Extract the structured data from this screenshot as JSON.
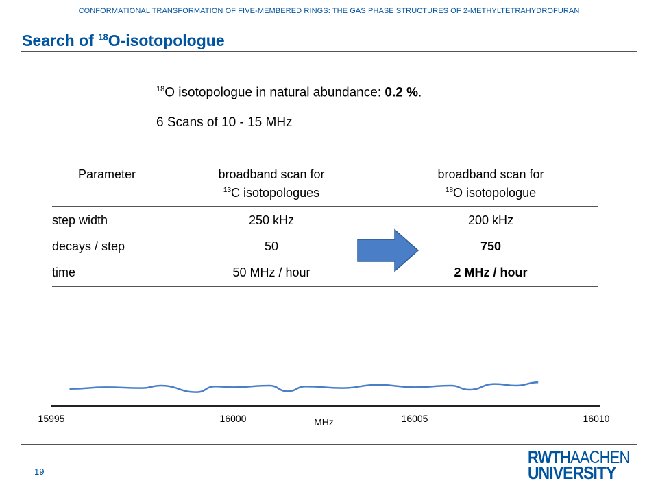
{
  "header": {
    "text": "CONFORMATIONAL TRANSFORMATION OF FIVE-MEMBERED RINGS: THE GAS PHASE STRUCTURES OF 2-METHYLTETRAHYDROFURAN"
  },
  "title": {
    "prefix": "Search of ",
    "sup": "18",
    "suffix": "O-isotopologue"
  },
  "intro": {
    "sup": "18",
    "text": "O isotopologue  in natural abundance: ",
    "value": "0.2 %",
    "end": "."
  },
  "scans": "6 Scans of 10 - 15 MHz",
  "table": {
    "headers": {
      "parameter": "Parameter",
      "col1_line1": "broadband scan for",
      "col1_sup": "13",
      "col1_line2": "C isotopologues",
      "col2_line1": "broadband scan for",
      "col2_sup": "18",
      "col2_line2": "O isotopologue"
    },
    "rows": [
      {
        "param": "step width",
        "c13": "250 kHz",
        "o18": "200 kHz"
      },
      {
        "param": "decays / step",
        "c13": "50",
        "o18": "750"
      },
      {
        "param": "time",
        "c13": "50 MHz / hour",
        "o18": "2 MHz / hour"
      }
    ]
  },
  "arrow_color": "#4a7fc8",
  "chart_data": {
    "type": "line",
    "xlabel": "MHz",
    "xlim": [
      15995,
      16010
    ],
    "xticks": [
      15995,
      16000,
      16005,
      16010
    ],
    "series": [
      {
        "x": [
          15995.5,
          15996.5,
          15997.5,
          15998.0,
          15999.0,
          15999.5,
          16000.0,
          16001.0,
          16001.5,
          16002.0,
          16003.0,
          16004.0,
          16005.0,
          16006.0,
          16006.5,
          16007.2,
          16007.8,
          16008.4
        ],
        "y": [
          0.1,
          0.3,
          0.2,
          0.5,
          -0.3,
          0.4,
          0.3,
          0.5,
          -0.2,
          0.4,
          0.2,
          0.6,
          0.3,
          0.5,
          0.0,
          0.7,
          0.5,
          0.9
        ]
      }
    ],
    "grid": false
  },
  "footer": {
    "page": "19"
  },
  "logo": {
    "rwth": "RWTH",
    "aachen": "AACHEN",
    "university": "UNIVERSITY"
  }
}
